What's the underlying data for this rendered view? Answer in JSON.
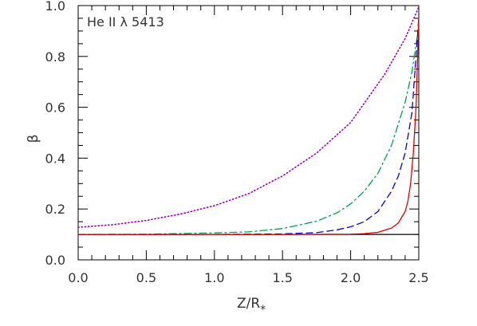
{
  "chart_data": {
    "type": "line",
    "annotation": "He II λ 5413",
    "xlabel_main": "Z/R",
    "xlabel_sub": "*",
    "ylabel": "β",
    "xlim": [
      0.0,
      2.5
    ],
    "ylim": [
      0.0,
      1.0
    ],
    "x_ticks": [
      {
        "value": 0.0,
        "label": "0.0"
      },
      {
        "value": 0.5,
        "label": "0.5"
      },
      {
        "value": 1.0,
        "label": "1.0"
      },
      {
        "value": 1.5,
        "label": "1.5"
      },
      {
        "value": 2.0,
        "label": "2.0"
      },
      {
        "value": 2.5,
        "label": "2.5"
      }
    ],
    "y_ticks": [
      {
        "value": 0.0,
        "label": "0.0"
      },
      {
        "value": 0.2,
        "label": "0.2"
      },
      {
        "value": 0.4,
        "label": "0.4"
      },
      {
        "value": 0.6,
        "label": "0.6"
      },
      {
        "value": 0.8,
        "label": "0.8"
      },
      {
        "value": 1.0,
        "label": "1.0"
      }
    ],
    "grid": false,
    "series": [
      {
        "style": "solid",
        "color": "#000000",
        "x": [
          0.0,
          2.5
        ],
        "y": [
          0.1,
          0.1
        ]
      },
      {
        "style": "dotted",
        "color": "#a000c0",
        "x": [
          0.0,
          0.25,
          0.5,
          0.75,
          1.0,
          1.25,
          1.5,
          1.75,
          2.0,
          2.25,
          2.4,
          2.5
        ],
        "y": [
          0.128,
          0.138,
          0.155,
          0.18,
          0.213,
          0.26,
          0.33,
          0.42,
          0.54,
          0.73,
          0.87,
          0.995
        ]
      },
      {
        "style": "dash-dot",
        "color": "#00a050",
        "x": [
          0.0,
          0.5,
          1.0,
          1.25,
          1.5,
          1.75,
          1.9,
          2.0,
          2.1,
          2.2,
          2.3,
          2.4,
          2.45,
          2.5
        ],
        "y": [
          0.1,
          0.101,
          0.106,
          0.11,
          0.123,
          0.152,
          0.185,
          0.22,
          0.27,
          0.34,
          0.45,
          0.62,
          0.74,
          0.92
        ]
      },
      {
        "style": "dashed",
        "color": "#0000e0",
        "x": [
          0.0,
          1.0,
          1.5,
          1.75,
          1.9,
          2.0,
          2.1,
          2.2,
          2.3,
          2.35,
          2.4,
          2.45,
          2.5
        ],
        "y": [
          0.1,
          0.1,
          0.102,
          0.107,
          0.118,
          0.13,
          0.15,
          0.19,
          0.27,
          0.33,
          0.42,
          0.58,
          0.95
        ]
      },
      {
        "style": "solid",
        "color": "#e00000",
        "x": [
          0.0,
          1.5,
          2.0,
          2.1,
          2.2,
          2.3,
          2.35,
          2.4,
          2.42,
          2.44,
          2.46,
          2.48,
          2.5
        ],
        "y": [
          0.1,
          0.1,
          0.101,
          0.103,
          0.108,
          0.125,
          0.145,
          0.19,
          0.23,
          0.3,
          0.42,
          0.6,
          0.95
        ]
      }
    ]
  }
}
